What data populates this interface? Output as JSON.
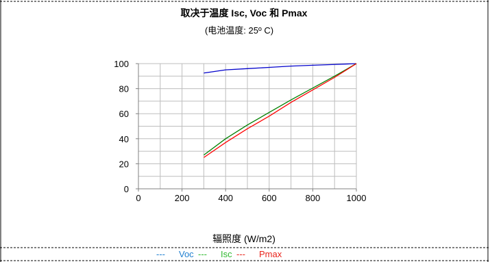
{
  "chart_data": {
    "type": "line",
    "title": "取决于温度 Isc, Voc 和 Pmax",
    "subtitle": "(电池温度: 25º C)",
    "xlabel": "辐照度 (W/m2)",
    "ylabel": "",
    "xlim": [
      0,
      1000
    ],
    "ylim": [
      0,
      100
    ],
    "x_ticks": [
      "0",
      "200",
      "400",
      "600",
      "800",
      "1000"
    ],
    "y_ticks": [
      "0",
      "20",
      "40",
      "60",
      "80",
      "100"
    ],
    "x_tick_values": [
      0,
      200,
      400,
      600,
      800,
      1000
    ],
    "y_tick_values": [
      0,
      20,
      40,
      60,
      80,
      100
    ],
    "x_minor_step": 100,
    "y_minor_step": 10,
    "grid": true,
    "legend_position": "bottom-center",
    "series": [
      {
        "name": "Voc",
        "color": "#0000cc",
        "x": [
          300,
          400,
          500,
          600,
          700,
          800,
          900,
          1000
        ],
        "y": [
          92.5,
          95,
          96,
          97,
          98,
          98.7,
          99.3,
          100
        ]
      },
      {
        "name": "Isc",
        "color": "#008000",
        "x": [
          300,
          400,
          500,
          600,
          700,
          800,
          900,
          1000
        ],
        "y": [
          27,
          40,
          51,
          61,
          71,
          80.5,
          90,
          100
        ]
      },
      {
        "name": "Pmax",
        "color": "#ff0000",
        "x": [
          300,
          400,
          500,
          600,
          700,
          800,
          900,
          1000
        ],
        "y": [
          25,
          37,
          48,
          58,
          69,
          79,
          89,
          100
        ]
      }
    ],
    "legend": [
      {
        "marker": "---",
        "label": "Voc",
        "color": "#1f7fd0"
      },
      {
        "marker": "---",
        "label": "Isc",
        "color": "#2eb82e"
      },
      {
        "marker": "---",
        "label": "Pmax",
        "color": "#e8231b"
      }
    ]
  }
}
